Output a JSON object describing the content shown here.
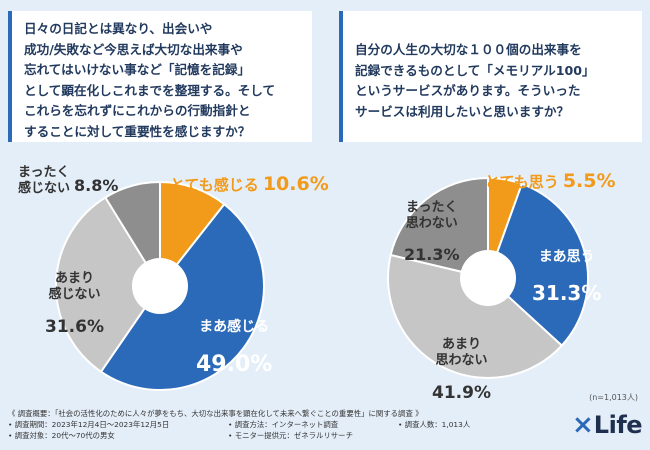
{
  "left_question": "日々の日記とは異なり、出会いや\n成功/失敗など今思えば大切な出来事や\n忘れてはいけない事など「記憶を記録」\nとして顕在化しこれまでを整理する。そして\nこれらを忘れずにこれからの行動指針と\nすることに対して重要性を感じますか？",
  "right_question": "自分の人生の大切な１００個の出来事を\n記録できるものとして「メモリアル100」\nというサービスがあります。そういった\nサービスは利用したいと思いますか？",
  "sample_note": "(n=1,013人)",
  "survey": {
    "overview": "《 調査概要：「社会の活性化のために人々が夢をもち、大切な出来事を顕在化して未来へ繋ぐことの重要性」に関する調査 》",
    "period": "• 調査期間：2023年12月4日〜2023年12月5日",
    "method": "• 調査方法：インターネット調査",
    "count": "• 調査人数：1,013人",
    "target": "• 調査対象：20代〜70代の男女",
    "provider": "• モニター提供元：ゼネラルリサーチ"
  },
  "logo": {
    "mark": "×",
    "text": "Life"
  },
  "colors": {
    "orange": "#f29a1a",
    "blue": "#2b6ab8",
    "light_gray": "#c6c6c6",
    "dark_gray": "#8e8e8e",
    "background": "#e4eef8"
  },
  "chart_data": [
    {
      "type": "pie",
      "title": "重要性を感じますか？",
      "categories": [
        "とても感じる",
        "まあ感じる",
        "あまり感じない",
        "まったく感じない"
      ],
      "values": [
        10.6,
        49.0,
        31.6,
        8.8
      ],
      "labels": [
        {
          "name": "とても感じる",
          "pct": "10.6%"
        },
        {
          "name": "まあ感じる",
          "pct": "49.0%"
        },
        {
          "name": "あまり\n感じない",
          "pct": "31.6%"
        },
        {
          "name": "まったく\n感じない",
          "pct": "8.8%"
        }
      ]
    },
    {
      "type": "pie",
      "title": "利用したいと思いますか？",
      "categories": [
        "とても思う",
        "まあ思う",
        "あまり思わない",
        "まったく思わない"
      ],
      "values": [
        5.5,
        31.3,
        41.9,
        21.3
      ],
      "labels": [
        {
          "name": "とても思う",
          "pct": "5.5%"
        },
        {
          "name": "まあ思う",
          "pct": "31.3%"
        },
        {
          "name": "あまり\n思わない",
          "pct": "41.9%"
        },
        {
          "name": "まったく\n思わない",
          "pct": "21.3%"
        }
      ]
    }
  ]
}
